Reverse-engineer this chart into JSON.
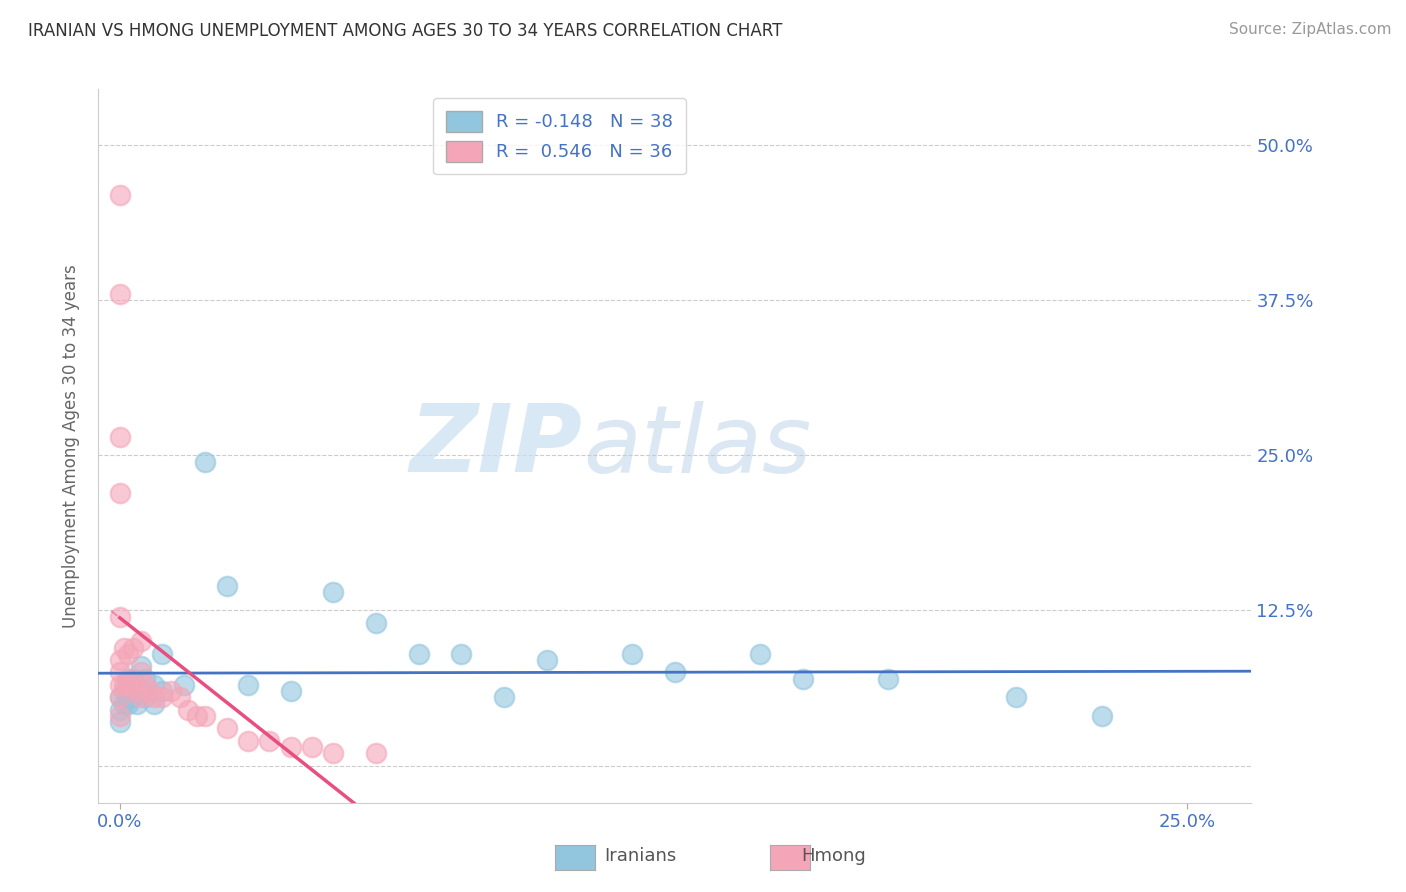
{
  "title": "IRANIAN VS HMONG UNEMPLOYMENT AMONG AGES 30 TO 34 YEARS CORRELATION CHART",
  "source": "Source: ZipAtlas.com",
  "xlim": [
    -0.005,
    0.265
  ],
  "ylim": [
    -0.03,
    0.545
  ],
  "ylabel_ticks": [
    0.0,
    0.125,
    0.25,
    0.375,
    0.5
  ],
  "ylabel_labels": [
    "",
    "12.5%",
    "25.0%",
    "37.5%",
    "50.0%"
  ],
  "iranian_r": -0.148,
  "iranian_n": 38,
  "hmong_r": 0.546,
  "hmong_n": 36,
  "iranian_color": "#92C5DE",
  "hmong_color": "#F4A6B8",
  "iranian_line_color": "#4472C4",
  "hmong_line_color": "#E84F80",
  "watermark_zip": "ZIP",
  "watermark_atlas": "atlas",
  "ylabel": "Unemployment Among Ages 30 to 34 years",
  "iranian_x": [
    0.0,
    0.0,
    0.0,
    0.001,
    0.001,
    0.002,
    0.002,
    0.002,
    0.003,
    0.003,
    0.004,
    0.004,
    0.005,
    0.005,
    0.006,
    0.006,
    0.008,
    0.008,
    0.01,
    0.01,
    0.015,
    0.02,
    0.025,
    0.03,
    0.04,
    0.05,
    0.06,
    0.07,
    0.08,
    0.09,
    0.1,
    0.12,
    0.13,
    0.15,
    0.16,
    0.18,
    0.21,
    0.23
  ],
  "iranian_y": [
    0.055,
    0.045,
    0.035,
    0.06,
    0.05,
    0.07,
    0.06,
    0.05,
    0.07,
    0.055,
    0.065,
    0.05,
    0.08,
    0.06,
    0.07,
    0.055,
    0.065,
    0.05,
    0.09,
    0.06,
    0.065,
    0.245,
    0.145,
    0.065,
    0.06,
    0.14,
    0.115,
    0.09,
    0.09,
    0.055,
    0.085,
    0.09,
    0.075,
    0.09,
    0.07,
    0.07,
    0.055,
    0.04
  ],
  "hmong_x": [
    0.0,
    0.0,
    0.0,
    0.0,
    0.0,
    0.0,
    0.0,
    0.0,
    0.0,
    0.0,
    0.001,
    0.001,
    0.002,
    0.002,
    0.003,
    0.003,
    0.004,
    0.005,
    0.005,
    0.005,
    0.006,
    0.007,
    0.008,
    0.01,
    0.012,
    0.014,
    0.016,
    0.018,
    0.02,
    0.025,
    0.03,
    0.035,
    0.04,
    0.045,
    0.05,
    0.06
  ],
  "hmong_y": [
    0.46,
    0.38,
    0.265,
    0.22,
    0.12,
    0.085,
    0.075,
    0.065,
    0.055,
    0.04,
    0.095,
    0.065,
    0.09,
    0.065,
    0.095,
    0.065,
    0.06,
    0.1,
    0.075,
    0.055,
    0.065,
    0.06,
    0.055,
    0.055,
    0.06,
    0.055,
    0.045,
    0.04,
    0.04,
    0.03,
    0.02,
    0.02,
    0.015,
    0.015,
    0.01,
    0.01
  ],
  "grid_color": "#CCCCCC",
  "bg_color": "#FFFFFF"
}
